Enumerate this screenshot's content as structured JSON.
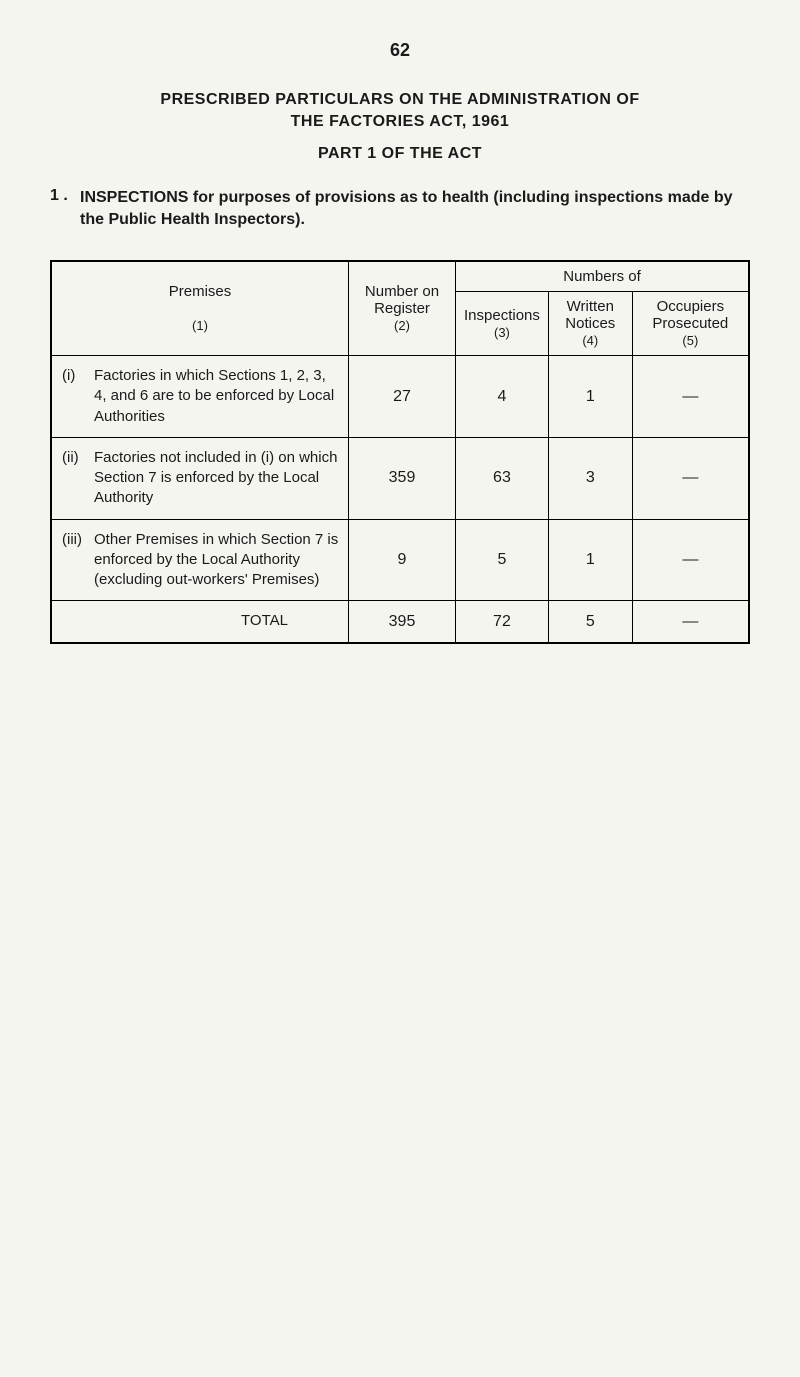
{
  "page_number": "62",
  "heading": {
    "line1": "PRESCRIBED PARTICULARS ON THE ADMINISTRATION OF",
    "line2": "THE FACTORIES ACT, 1961",
    "line3": "PART 1 OF THE ACT"
  },
  "section": {
    "number": "1 .",
    "text": "INSPECTIONS for purposes of provisions as to health (including inspections made by the Public Health Inspectors)."
  },
  "table": {
    "headers": {
      "premises": "Premises",
      "premises_ref": "(1)",
      "number_on_register": "Number on Register",
      "number_on_register_ref": "(2)",
      "numbers_of": "Numbers of",
      "inspections": "Inspections",
      "inspections_ref": "(3)",
      "written_notices": "Written Notices",
      "written_notices_ref": "(4)",
      "occupiers_prosecuted": "Occupiers Prosecuted",
      "occupiers_prosecuted_ref": "(5)"
    },
    "rows": [
      {
        "marker": "(i)",
        "label": "Factories in which Sections 1, 2, 3, 4, and 6 are to be enforced by Local Authorities",
        "register": "27",
        "inspections": "4",
        "notices": "1",
        "prosecuted": "—"
      },
      {
        "marker": "(ii)",
        "label": "Factories not included in (i) on which Section 7 is enforced by the Local Authority",
        "register": "359",
        "inspections": "63",
        "notices": "3",
        "prosecuted": "—"
      },
      {
        "marker": "(iii)",
        "label": "Other Premises in which Section 7 is enforced by the Local Authority (excluding out-workers' Premises)",
        "register": "9",
        "inspections": "5",
        "notices": "1",
        "prosecuted": "—"
      }
    ],
    "total": {
      "label": "TOTAL",
      "register": "395",
      "inspections": "72",
      "notices": "5",
      "prosecuted": "—"
    }
  }
}
